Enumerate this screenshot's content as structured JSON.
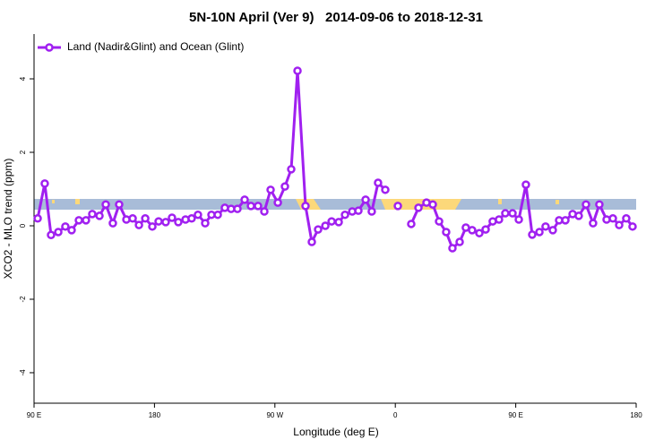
{
  "chart_data": {
    "type": "line",
    "title": "5N-10N April (Ver 9)   2014-09-06 to 2018-12-31",
    "xlabel": "Longitude (deg E)",
    "ylabel": "XCO2 - MLO trend (ppm)",
    "series": [
      {
        "name": "Land (Nadir&Glint) and Ocean (Glint)",
        "color": "#a020f0",
        "x": [
          92.7,
          98.0,
          102.7,
          108.1,
          113.4,
          118.1,
          123.5,
          128.8,
          133.5,
          138.9,
          143.6,
          148.9,
          153.6,
          159.0,
          163.7,
          168.4,
          173.1,
          178.4,
          183.1,
          188.4,
          193.1,
          197.8,
          203.2,
          207.8,
          212.5,
          217.9,
          222.6,
          227.3,
          232.6,
          237.3,
          242.0,
          247.4,
          252.1,
          257.4,
          262.1,
          266.8,
          272.2,
          277.5,
          282.2,
          286.9,
          292.9,
          297.6,
          302.3,
          307.7,
          312.4,
          317.7,
          322.4,
          327.8,
          332.4,
          337.8,
          342.4,
          347.1,
          352.5,
          null,
          361.9,
          null,
          371.9,
          377.3,
          383.3,
          388.0,
          392.7,
          398.0,
          402.7,
          408.1,
          412.7,
          417.4,
          422.8,
          427.5,
          432.8,
          437.5,
          442.2,
          447.6,
          452.3,
          457.6,
          462.3,
          467.7,
          472.3,
          477.7,
          482.4,
          487.1,
          492.5,
          497.1,
          502.5,
          507.8,
          512.5,
          517.9,
          522.6,
          527.3,
          532.6,
          537.3
        ],
        "values": [
          0.2,
          1.15,
          -0.25,
          -0.17,
          -0.02,
          -0.12,
          0.15,
          0.15,
          0.32,
          0.27,
          0.58,
          0.07,
          0.58,
          0.17,
          0.2,
          0.02,
          0.2,
          -0.02,
          0.12,
          0.1,
          0.22,
          0.1,
          0.17,
          0.2,
          0.3,
          0.07,
          0.3,
          0.3,
          0.49,
          0.46,
          0.46,
          0.71,
          0.54,
          0.54,
          0.39,
          0.98,
          0.63,
          1.07,
          1.54,
          4.22,
          0.54,
          -0.44,
          -0.1,
          0,
          0.12,
          0.1,
          0.3,
          0.39,
          0.41,
          0.71,
          0.39,
          1.17,
          0.98,
          null,
          0.54,
          null,
          0.05,
          0.49,
          0.63,
          0.58,
          0.12,
          -0.17,
          -0.61,
          -0.44,
          -0.05,
          -0.12,
          -0.2,
          -0.1,
          0.12,
          0.17,
          0.34,
          0.34,
          0.17,
          1.12,
          -0.24,
          -0.17,
          -0.02,
          -0.12,
          0.15,
          0.15,
          0.32,
          0.27,
          0.58,
          0.07,
          0.58,
          0.17,
          0.2,
          0.02,
          0.2,
          -0.02
        ]
      }
    ],
    "xlim": [
      90,
      540
    ],
    "xticks": [
      {
        "value": 90,
        "label": "90 E"
      },
      180,
      {
        "value": 270,
        "label": "90 W"
      },
      {
        "value": 360,
        "label": "0"
      },
      {
        "value": 450,
        "label": "90 E"
      },
      {
        "value": 540,
        "label": "180"
      }
    ],
    "ylim": [
      -4.83,
      5.22
    ],
    "yticks": [
      -4,
      -2,
      0,
      2,
      4
    ],
    "legend": "top-left"
  }
}
